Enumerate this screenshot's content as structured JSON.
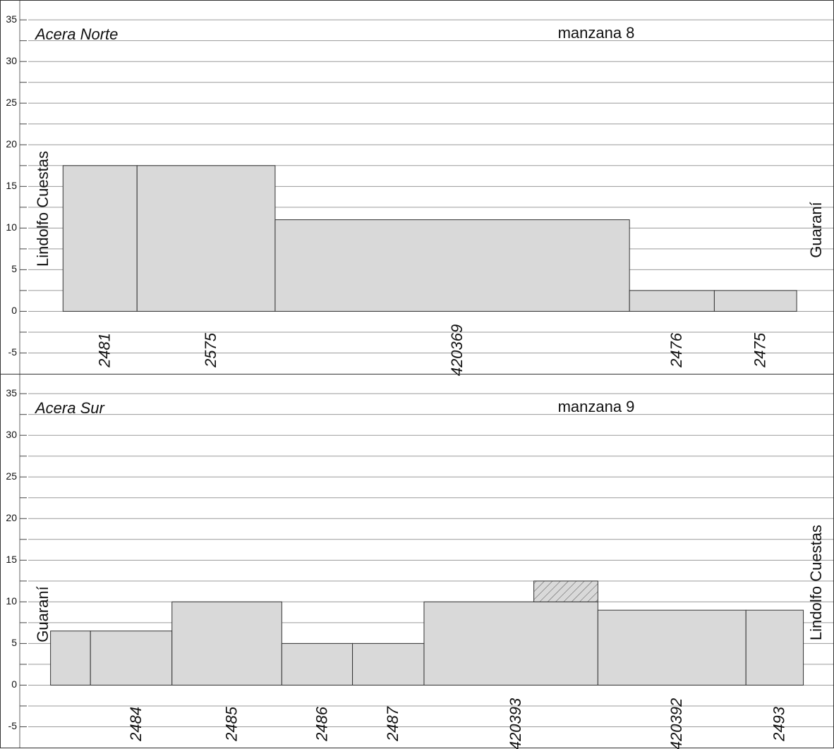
{
  "chart_data": [
    {
      "type": "bar",
      "title": "manzana 8",
      "subtitle": "Acera Norte",
      "left_label": "Lindolfo Cuestas",
      "right_label": "Guaraní",
      "categories": [
        "2481",
        "2575",
        "420369",
        "2476",
        "2475"
      ],
      "x0": [
        5.2,
        14.1,
        30.7,
        73.3,
        83.5
      ],
      "x1": [
        14.1,
        30.7,
        73.3,
        83.5,
        93.4
      ],
      "values": [
        17.5,
        17.5,
        11,
        2.5,
        2.5
      ],
      "color": "#d9d9d9",
      "xlim": [
        0,
        97.8
      ],
      "ylim": [
        -7.5,
        37.3
      ],
      "yticks": [
        -5,
        0,
        5,
        10,
        15,
        20,
        25,
        30,
        35
      ],
      "minor_yticks": [
        -2.5,
        2.5,
        7.5,
        12.5,
        17.5,
        22.5,
        27.5,
        32.5
      ],
      "grid": true
    },
    {
      "type": "bar",
      "title": "manzana 9",
      "subtitle": "Acera Sur",
      "left_label": "Guaraní",
      "right_label": "Lindolfo Cuestas",
      "categories": [
        null,
        "2484",
        "2485",
        "2486",
        "2487",
        "420393",
        "420392",
        "2493"
      ],
      "x0": [
        3.7,
        8.5,
        18.3,
        31.5,
        40.0,
        48.6,
        69.5,
        87.3
      ],
      "x1": [
        8.5,
        18.3,
        31.5,
        40.0,
        48.6,
        69.5,
        87.3,
        94.2
      ],
      "values": [
        6.5,
        6.5,
        10,
        5,
        5,
        10,
        9,
        9
      ],
      "color": "#d9d9d9",
      "hatched": [
        {
          "x0": 61.8,
          "x1": 69.5,
          "y0": 10,
          "y1": 12.5
        }
      ],
      "xlim": [
        0,
        97.8
      ],
      "ylim": [
        -7.5,
        37.3
      ],
      "yticks": [
        -5,
        0,
        5,
        10,
        15,
        20,
        25,
        30,
        35
      ],
      "minor_yticks": [
        -2.5,
        2.5,
        7.5,
        12.5,
        17.5,
        22.5,
        27.5,
        32.5
      ],
      "grid": true
    }
  ]
}
